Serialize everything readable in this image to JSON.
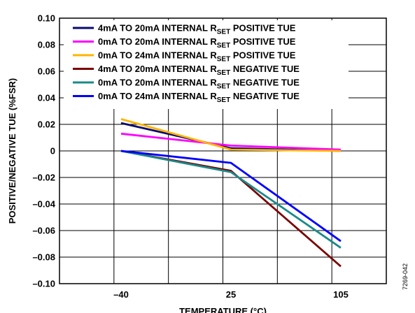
{
  "chart_data": {
    "type": "line",
    "categories": [
      "–40",
      "25",
      "105"
    ],
    "xlabel": "TEMPERATURE (°C)",
    "ylabel": "POSITIVE/NEGATIVE TUE (%FSR)",
    "ylim": [
      -0.1,
      0.1
    ],
    "yticks": [
      "0.10",
      "0.08",
      "0.06",
      "0.04",
      "0.02",
      "0",
      "–0.02",
      "–0.04",
      "–0.06",
      "–0.08",
      "–0.10"
    ],
    "grid": true,
    "legend_position": "top-right",
    "series": [
      {
        "name": "4mA TO 20mA INTERNAL RSET POSITIVE TUE",
        "label_main": "4mA TO 20mA INTERNAL R",
        "label_sub": "SET",
        "label_tail": " POSITIVE TUE",
        "color": "#0a0a6e",
        "values": [
          0.021,
          0.002,
          0.0
        ]
      },
      {
        "name": "0mA TO 20mA INTERNAL RSET POSITIVE TUE",
        "label_main": "0mA TO 20mA INTERNAL R",
        "label_sub": "SET",
        "label_tail": " POSITIVE TUE",
        "color": "#ff00ff",
        "values": [
          0.013,
          0.004,
          0.001
        ]
      },
      {
        "name": "0mA TO 24mA INTERNAL RSET POSITIVE TUE",
        "label_main": "0mA TO 24mA INTERNAL R",
        "label_sub": "SET",
        "label_tail": " POSITIVE TUE",
        "color": "#ffb400",
        "values": [
          0.024,
          0.001,
          0.0
        ]
      },
      {
        "name": "4mA TO 20mA INTERNAL RSET NEGATIVE TUE",
        "label_main": "4mA TO 20mA INTERNAL R",
        "label_sub": "SET",
        "label_tail": " NEGATIVE TUE",
        "color": "#7a0000",
        "values": [
          0.0,
          -0.015,
          -0.087
        ]
      },
      {
        "name": "0mA TO 20mA INTERNAL RSET NEGATIVE TUE",
        "label_main": "0mA TO 20mA INTERNAL R",
        "label_sub": "SET",
        "label_tail": " NEGATIVE TUE",
        "color": "#1a8a8a",
        "values": [
          0.0,
          -0.016,
          -0.073
        ]
      },
      {
        "name": "0mA TO 24mA INTERNAL RSET NEGATIVE TUE",
        "label_main": "0mA TO 24mA INTERNAL R",
        "label_sub": "SET",
        "label_tail": " NEGATIVE TUE",
        "color": "#0000ff",
        "values": [
          0.0,
          -0.009,
          -0.068
        ]
      }
    ],
    "figure_code": "7269-042"
  }
}
